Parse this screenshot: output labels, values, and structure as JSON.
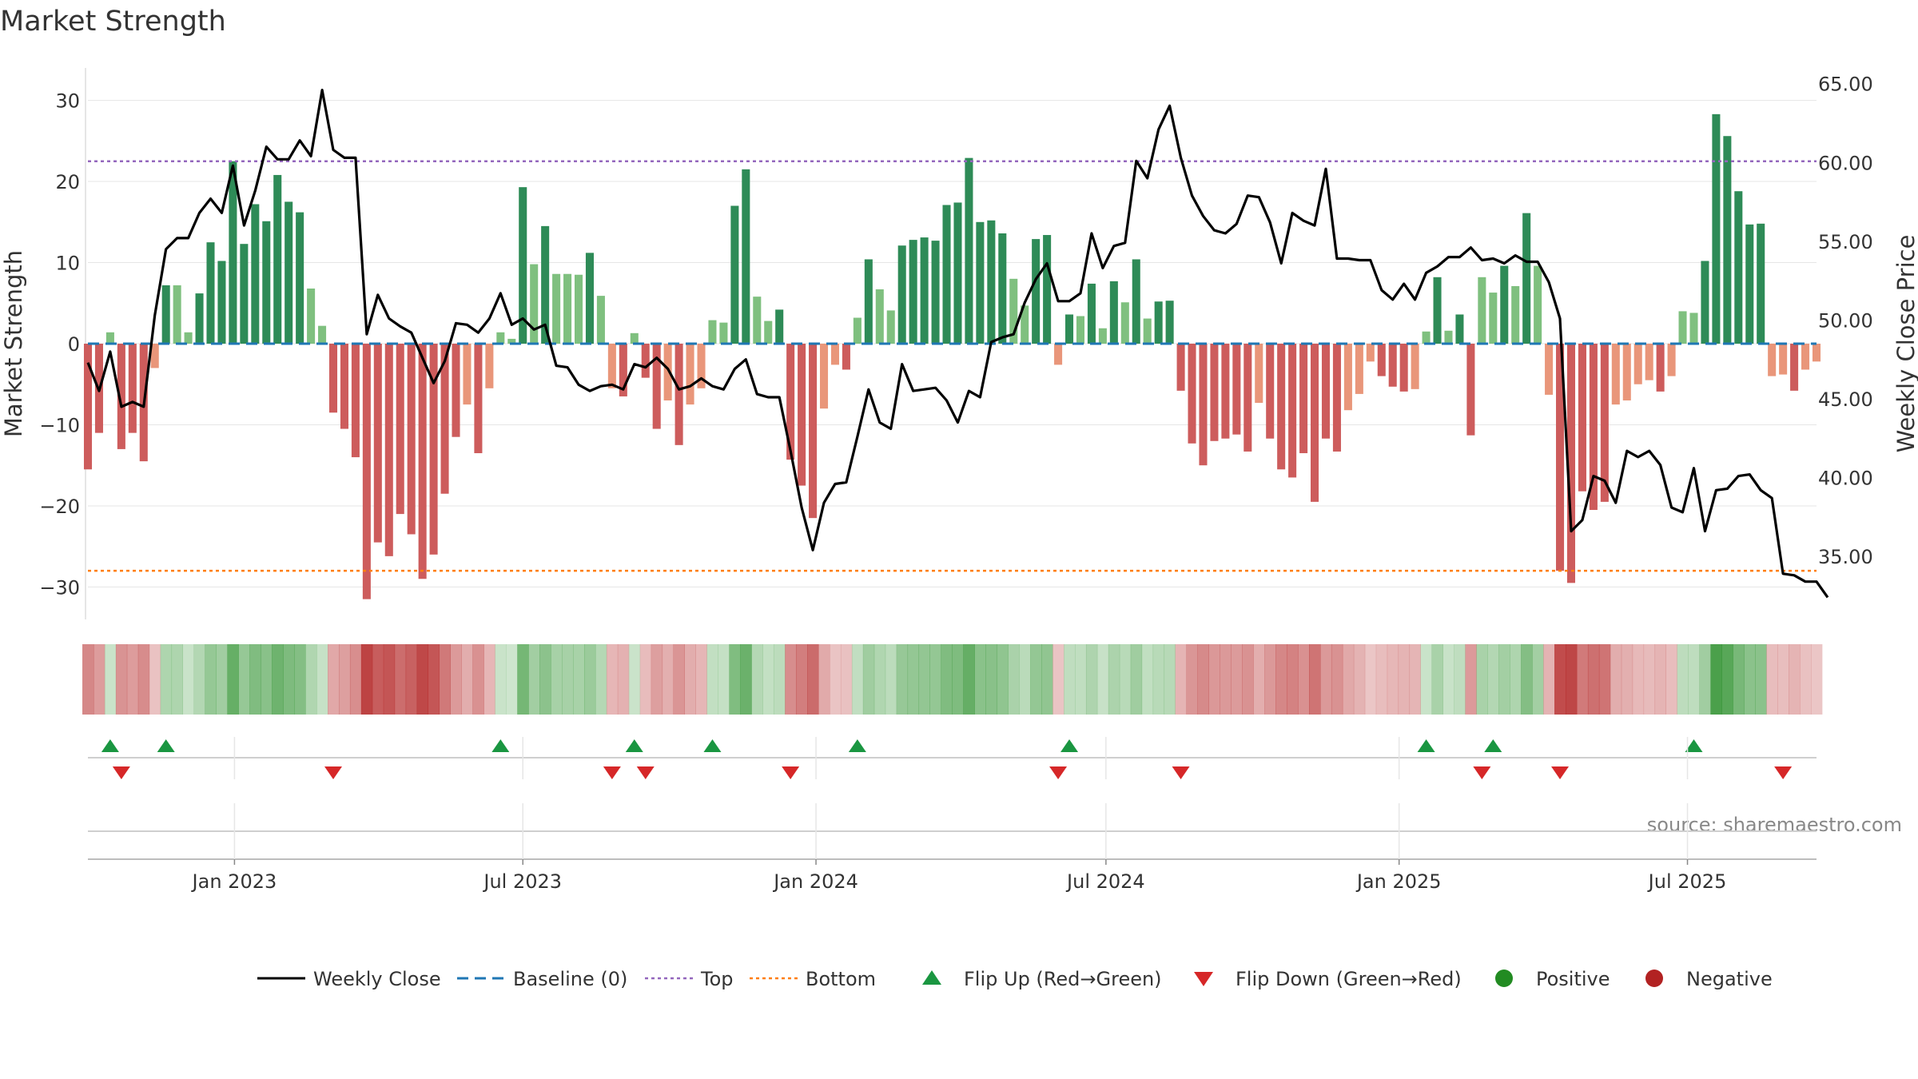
{
  "chart_data": {
    "type": "bar",
    "title": "Market Strength",
    "ylabel_left": "Market Strength",
    "ylabel_right": "Weekly Close Price",
    "source": "source: sharemaestro.com",
    "x_start": "2022-10-01",
    "week_days": 7,
    "ylim_left": [
      -34,
      34
    ],
    "ylim_right": [
      31,
      66
    ],
    "yticks_left": [
      30,
      20,
      10,
      0,
      -10,
      -20,
      -30
    ],
    "yticks_left_labels": [
      "30",
      "20",
      "10",
      "0",
      "−10",
      "−20",
      "−30"
    ],
    "yticks_right": [
      65,
      60,
      55,
      50,
      45,
      40,
      35
    ],
    "yticks_right_labels": [
      "65.00",
      "60.00",
      "55.00",
      "50.00",
      "45.00",
      "40.00",
      "35.00"
    ],
    "xticks": [
      {
        "date": "2023-01-01",
        "label": "Jan 2023"
      },
      {
        "date": "2023-07-01",
        "label": "Jul 2023"
      },
      {
        "date": "2024-01-01",
        "label": "Jan 2024"
      },
      {
        "date": "2024-07-01",
        "label": "Jul 2024"
      },
      {
        "date": "2025-01-01",
        "label": "Jan 2025"
      },
      {
        "date": "2025-07-01",
        "label": "Jul 2025"
      }
    ],
    "top_level": 22.5,
    "bottom_level": -28,
    "strength": [
      -15.5,
      -11,
      1.4,
      -13,
      -11,
      -14.5,
      -3,
      7.2,
      7.2,
      1.4,
      6.2,
      12.5,
      10.2,
      22.5,
      12.3,
      17.2,
      15.1,
      20.8,
      17.5,
      16.2,
      6.8,
      2.2,
      -8.5,
      -10.5,
      -14,
      -31.5,
      -24.5,
      -26.2,
      -21,
      -23.5,
      -29,
      -26,
      -18.5,
      -11.5,
      -7.5,
      -13.5,
      -5.5,
      1.4,
      0.6,
      19.3,
      9.8,
      14.5,
      8.6,
      8.6,
      8.5,
      11.2,
      5.9,
      -5.5,
      -6.5,
      1.3,
      -4.2,
      -10.5,
      -7,
      -12.5,
      -7.5,
      -5.5,
      2.9,
      2.6,
      17,
      21.5,
      5.8,
      2.8,
      4.2,
      -14.3,
      -17.5,
      -21.5,
      -8,
      -2.6,
      -3.2,
      3.2,
      10.4,
      6.7,
      4.1,
      12.1,
      12.8,
      13.1,
      12.7,
      17.1,
      17.4,
      22.9,
      15,
      15.2,
      13.6,
      8,
      4.7,
      12.9,
      13.4,
      -2.6,
      3.6,
      3.4,
      7.4,
      1.9,
      7.7,
      5.1,
      10.4,
      3.1,
      5.2,
      5.3,
      -5.8,
      -12.3,
      -15,
      -12,
      -11.7,
      -11.2,
      -13.3,
      -7.3,
      -11.7,
      -15.5,
      -16.5,
      -13.5,
      -19.5,
      -11.7,
      -13.3,
      -8.2,
      -6.2,
      -2.2,
      -4,
      -5.3,
      -5.9,
      -5.6,
      1.5,
      8.2,
      1.6,
      3.6,
      -11.3,
      8.2,
      6.3,
      9.6,
      7.1,
      16.1,
      9.6,
      -6.3,
      -28,
      -29.5,
      -18.2,
      -20.5,
      -19.5,
      -7.5,
      -7,
      -5,
      -4.5,
      -5.9,
      -4,
      4,
      3.8,
      10.2,
      28.3,
      25.6,
      18.8,
      14.7,
      14.8,
      -4,
      -3.8,
      -5.8,
      -3.2,
      -2.2
    ],
    "weekly_close": [
      47.3,
      45.5,
      48,
      44.5,
      44.8,
      44.5,
      50.3,
      54.5,
      55.2,
      55.2,
      56.8,
      57.7,
      56.8,
      59.8,
      56,
      58.2,
      61,
      60.2,
      60.2,
      61.4,
      60.4,
      64.6,
      60.8,
      60.3,
      60.3,
      49.1,
      51.6,
      50.1,
      49.6,
      49.2,
      47.6,
      46,
      47.4,
      49.8,
      49.7,
      49.2,
      50.1,
      51.7,
      49.7,
      50.1,
      49.4,
      49.7,
      47.1,
      47,
      45.9,
      45.5,
      45.8,
      45.9,
      45.6,
      47.2,
      47,
      47.6,
      46.9,
      45.6,
      45.8,
      46.3,
      45.8,
      45.6,
      46.9,
      47.5,
      45.3,
      45.1,
      45.1,
      41.7,
      38.1,
      35.4,
      38.4,
      39.6,
      39.7,
      42.6,
      45.6,
      43.5,
      43.1,
      47.2,
      45.5,
      45.6,
      45.7,
      44.9,
      43.5,
      45.5,
      45.1,
      48.6,
      48.9,
      49.1,
      51.1,
      52.6,
      53.6,
      51.2,
      51.2,
      51.7,
      55.5,
      53.3,
      54.7,
      54.9,
      60.1,
      59,
      62.1,
      63.6,
      60.3,
      57.9,
      56.6,
      55.7,
      55.5,
      56.1,
      57.9,
      57.8,
      56.2,
      53.6,
      56.8,
      56.3,
      56,
      59.6,
      53.9,
      53.9,
      53.8,
      53.8,
      51.9,
      51.3,
      52.3,
      51.3,
      53,
      53.4,
      54,
      54,
      54.6,
      53.8,
      53.9,
      53.6,
      54.1,
      53.7,
      53.7,
      52.4,
      50.1,
      36.6,
      37.3,
      40.1,
      39.8,
      38.4,
      41.7,
      41.3,
      41.7,
      40.8,
      38.1,
      37.8,
      40.6,
      36.6,
      39.2,
      39.3,
      40.1,
      40.2,
      39.2,
      38.7,
      33.9,
      33.8,
      33.4,
      33.4,
      32.4
    ],
    "flip_up_idx": [
      2,
      7,
      37,
      49,
      56,
      69,
      88,
      120,
      126,
      144
    ],
    "flip_down_idx": [
      3,
      22,
      47,
      50,
      63,
      87,
      98,
      125,
      132,
      152
    ],
    "legend": [
      "Weekly Close",
      "Baseline (0)",
      "Top",
      "Bottom",
      "Flip Up (Red→Green)",
      "Flip Down (Green→Red)",
      "Positive",
      "Negative"
    ],
    "colors": {
      "pos_strong": "#2e8b57",
      "pos_weak": "#7fc07f",
      "neg_strong": "#cd5c5c",
      "neg_weak": "#e9967a",
      "line": "#000000",
      "baseline": "#1f77b4",
      "top": "#9467bd",
      "bottom": "#ff7f0e",
      "flip_up": "#1a9641",
      "flip_down": "#d62728",
      "positive": "#228b22",
      "negative": "#b22222",
      "grid": "#e6e6e6",
      "axis": "#cccccc"
    }
  }
}
